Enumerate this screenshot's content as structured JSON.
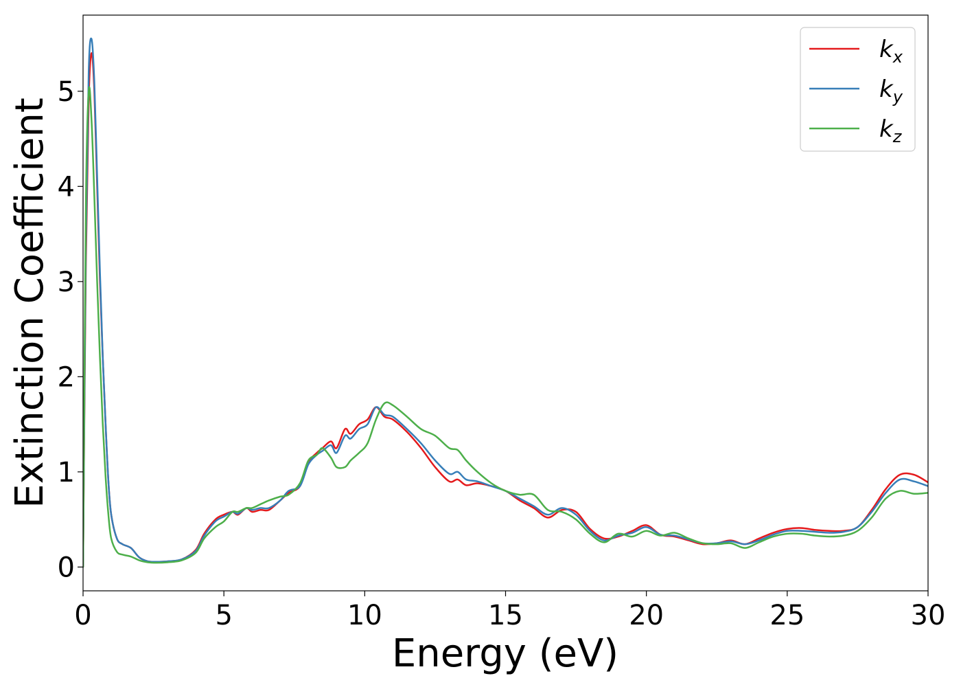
{
  "chart_data": {
    "type": "line",
    "xlabel": "Energy (eV)",
    "ylabel": "Extinction Coefficient",
    "xlim": [
      0,
      30
    ],
    "ylim": [
      -0.25,
      5.8
    ],
    "xticks": [
      0,
      5,
      10,
      15,
      20,
      25,
      30
    ],
    "yticks": [
      0,
      1,
      2,
      3,
      4,
      5
    ],
    "grid": false,
    "legend_position": "top-right",
    "series": [
      {
        "name": "k_x",
        "label_main": "k",
        "label_sub": "x",
        "color": "#e41a1c",
        "points": [
          [
            0,
            0
          ],
          [
            0.1,
            3.2
          ],
          [
            0.2,
            4.9
          ],
          [
            0.3,
            5.4
          ],
          [
            0.4,
            5.0
          ],
          [
            0.5,
            4.0
          ],
          [
            0.6,
            3.0
          ],
          [
            0.7,
            2.2
          ],
          [
            0.8,
            1.5
          ],
          [
            0.9,
            0.9
          ],
          [
            1.0,
            0.55
          ],
          [
            1.2,
            0.3
          ],
          [
            1.4,
            0.24
          ],
          [
            1.7,
            0.2
          ],
          [
            2.0,
            0.1
          ],
          [
            2.3,
            0.06
          ],
          [
            2.6,
            0.055
          ],
          [
            3.0,
            0.06
          ],
          [
            3.5,
            0.08
          ],
          [
            4.0,
            0.18
          ],
          [
            4.3,
            0.35
          ],
          [
            4.7,
            0.5
          ],
          [
            5.0,
            0.55
          ],
          [
            5.3,
            0.58
          ],
          [
            5.5,
            0.55
          ],
          [
            5.8,
            0.62
          ],
          [
            6.0,
            0.58
          ],
          [
            6.3,
            0.6
          ],
          [
            6.6,
            0.6
          ],
          [
            7.0,
            0.7
          ],
          [
            7.3,
            0.78
          ],
          [
            7.7,
            0.85
          ],
          [
            8.0,
            1.1
          ],
          [
            8.3,
            1.2
          ],
          [
            8.5,
            1.25
          ],
          [
            8.8,
            1.32
          ],
          [
            9.0,
            1.25
          ],
          [
            9.3,
            1.45
          ],
          [
            9.5,
            1.4
          ],
          [
            9.8,
            1.5
          ],
          [
            10.1,
            1.55
          ],
          [
            10.4,
            1.68
          ],
          [
            10.7,
            1.58
          ],
          [
            11.0,
            1.55
          ],
          [
            11.5,
            1.42
          ],
          [
            12.0,
            1.25
          ],
          [
            12.5,
            1.05
          ],
          [
            13.0,
            0.9
          ],
          [
            13.3,
            0.92
          ],
          [
            13.6,
            0.86
          ],
          [
            14.0,
            0.88
          ],
          [
            14.5,
            0.85
          ],
          [
            15.0,
            0.8
          ],
          [
            15.5,
            0.7
          ],
          [
            16.0,
            0.62
          ],
          [
            16.5,
            0.52
          ],
          [
            17.0,
            0.6
          ],
          [
            17.5,
            0.58
          ],
          [
            18.0,
            0.4
          ],
          [
            18.5,
            0.3
          ],
          [
            19.0,
            0.32
          ],
          [
            19.5,
            0.38
          ],
          [
            20.0,
            0.44
          ],
          [
            20.5,
            0.34
          ],
          [
            21.0,
            0.32
          ],
          [
            21.5,
            0.28
          ],
          [
            22.0,
            0.24
          ],
          [
            22.5,
            0.25
          ],
          [
            23.0,
            0.28
          ],
          [
            23.5,
            0.24
          ],
          [
            24.0,
            0.3
          ],
          [
            24.5,
            0.36
          ],
          [
            25.0,
            0.4
          ],
          [
            25.5,
            0.41
          ],
          [
            26.0,
            0.39
          ],
          [
            26.5,
            0.38
          ],
          [
            27.0,
            0.38
          ],
          [
            27.5,
            0.42
          ],
          [
            28.0,
            0.6
          ],
          [
            28.5,
            0.82
          ],
          [
            29.0,
            0.97
          ],
          [
            29.5,
            0.97
          ],
          [
            30.0,
            0.89
          ]
        ]
      },
      {
        "name": "k_y",
        "label_main": "k",
        "label_sub": "y",
        "color": "#377eb8",
        "points": [
          [
            0,
            0
          ],
          [
            0.1,
            3.4
          ],
          [
            0.2,
            5.2
          ],
          [
            0.3,
            5.55
          ],
          [
            0.4,
            5.1
          ],
          [
            0.5,
            4.1
          ],
          [
            0.6,
            3.1
          ],
          [
            0.7,
            2.2
          ],
          [
            0.8,
            1.5
          ],
          [
            0.9,
            0.9
          ],
          [
            1.0,
            0.55
          ],
          [
            1.2,
            0.3
          ],
          [
            1.4,
            0.24
          ],
          [
            1.7,
            0.2
          ],
          [
            2.0,
            0.1
          ],
          [
            2.3,
            0.06
          ],
          [
            2.6,
            0.055
          ],
          [
            3.0,
            0.06
          ],
          [
            3.5,
            0.08
          ],
          [
            4.0,
            0.17
          ],
          [
            4.3,
            0.33
          ],
          [
            4.7,
            0.48
          ],
          [
            5.0,
            0.53
          ],
          [
            5.3,
            0.58
          ],
          [
            5.5,
            0.56
          ],
          [
            5.8,
            0.62
          ],
          [
            6.0,
            0.6
          ],
          [
            6.3,
            0.62
          ],
          [
            6.6,
            0.62
          ],
          [
            7.0,
            0.7
          ],
          [
            7.3,
            0.8
          ],
          [
            7.7,
            0.85
          ],
          [
            8.0,
            1.08
          ],
          [
            8.3,
            1.18
          ],
          [
            8.5,
            1.22
          ],
          [
            8.8,
            1.28
          ],
          [
            9.0,
            1.2
          ],
          [
            9.3,
            1.38
          ],
          [
            9.5,
            1.35
          ],
          [
            9.8,
            1.45
          ],
          [
            10.1,
            1.5
          ],
          [
            10.4,
            1.68
          ],
          [
            10.7,
            1.6
          ],
          [
            11.0,
            1.58
          ],
          [
            11.5,
            1.45
          ],
          [
            12.0,
            1.3
          ],
          [
            12.5,
            1.12
          ],
          [
            13.0,
            0.98
          ],
          [
            13.3,
            1.0
          ],
          [
            13.6,
            0.92
          ],
          [
            14.0,
            0.9
          ],
          [
            14.5,
            0.85
          ],
          [
            15.0,
            0.8
          ],
          [
            15.5,
            0.72
          ],
          [
            16.0,
            0.64
          ],
          [
            16.5,
            0.55
          ],
          [
            17.0,
            0.62
          ],
          [
            17.5,
            0.55
          ],
          [
            18.0,
            0.38
          ],
          [
            18.5,
            0.28
          ],
          [
            19.0,
            0.33
          ],
          [
            19.5,
            0.36
          ],
          [
            20.0,
            0.42
          ],
          [
            20.5,
            0.34
          ],
          [
            21.0,
            0.33
          ],
          [
            21.5,
            0.29
          ],
          [
            22.0,
            0.25
          ],
          [
            22.5,
            0.25
          ],
          [
            23.0,
            0.27
          ],
          [
            23.5,
            0.24
          ],
          [
            24.0,
            0.28
          ],
          [
            24.5,
            0.34
          ],
          [
            25.0,
            0.38
          ],
          [
            25.5,
            0.38
          ],
          [
            26.0,
            0.37
          ],
          [
            26.5,
            0.36
          ],
          [
            27.0,
            0.37
          ],
          [
            27.5,
            0.42
          ],
          [
            28.0,
            0.58
          ],
          [
            28.5,
            0.78
          ],
          [
            29.0,
            0.92
          ],
          [
            29.5,
            0.9
          ],
          [
            30.0,
            0.85
          ]
        ]
      },
      {
        "name": "k_z",
        "label_main": "k",
        "label_sub": "z",
        "color": "#4daf4a",
        "points": [
          [
            0,
            0
          ],
          [
            0.1,
            3.8
          ],
          [
            0.2,
            5.0
          ],
          [
            0.3,
            4.7
          ],
          [
            0.4,
            3.9
          ],
          [
            0.5,
            3.0
          ],
          [
            0.6,
            2.2
          ],
          [
            0.7,
            1.5
          ],
          [
            0.8,
            0.95
          ],
          [
            0.9,
            0.55
          ],
          [
            1.0,
            0.3
          ],
          [
            1.2,
            0.16
          ],
          [
            1.4,
            0.13
          ],
          [
            1.7,
            0.11
          ],
          [
            2.0,
            0.07
          ],
          [
            2.3,
            0.05
          ],
          [
            2.6,
            0.045
          ],
          [
            3.0,
            0.05
          ],
          [
            3.5,
            0.07
          ],
          [
            4.0,
            0.15
          ],
          [
            4.3,
            0.3
          ],
          [
            4.7,
            0.42
          ],
          [
            5.0,
            0.48
          ],
          [
            5.3,
            0.58
          ],
          [
            5.5,
            0.58
          ],
          [
            5.8,
            0.62
          ],
          [
            6.0,
            0.62
          ],
          [
            6.3,
            0.66
          ],
          [
            6.6,
            0.7
          ],
          [
            7.0,
            0.74
          ],
          [
            7.3,
            0.76
          ],
          [
            7.7,
            0.88
          ],
          [
            8.0,
            1.12
          ],
          [
            8.3,
            1.18
          ],
          [
            8.5,
            1.25
          ],
          [
            8.8,
            1.15
          ],
          [
            9.0,
            1.05
          ],
          [
            9.3,
            1.05
          ],
          [
            9.5,
            1.12
          ],
          [
            9.8,
            1.2
          ],
          [
            10.1,
            1.3
          ],
          [
            10.4,
            1.55
          ],
          [
            10.7,
            1.72
          ],
          [
            11.0,
            1.7
          ],
          [
            11.5,
            1.58
          ],
          [
            12.0,
            1.45
          ],
          [
            12.5,
            1.38
          ],
          [
            13.0,
            1.25
          ],
          [
            13.3,
            1.23
          ],
          [
            13.6,
            1.12
          ],
          [
            14.0,
            1.0
          ],
          [
            14.5,
            0.88
          ],
          [
            15.0,
            0.8
          ],
          [
            15.5,
            0.76
          ],
          [
            16.0,
            0.76
          ],
          [
            16.5,
            0.6
          ],
          [
            17.0,
            0.58
          ],
          [
            17.5,
            0.5
          ],
          [
            18.0,
            0.35
          ],
          [
            18.5,
            0.26
          ],
          [
            19.0,
            0.35
          ],
          [
            19.5,
            0.32
          ],
          [
            20.0,
            0.38
          ],
          [
            20.5,
            0.33
          ],
          [
            21.0,
            0.36
          ],
          [
            21.5,
            0.3
          ],
          [
            22.0,
            0.25
          ],
          [
            22.5,
            0.24
          ],
          [
            23.0,
            0.25
          ],
          [
            23.5,
            0.2
          ],
          [
            24.0,
            0.26
          ],
          [
            24.5,
            0.32
          ],
          [
            25.0,
            0.35
          ],
          [
            25.5,
            0.35
          ],
          [
            26.0,
            0.33
          ],
          [
            26.5,
            0.32
          ],
          [
            27.0,
            0.33
          ],
          [
            27.5,
            0.38
          ],
          [
            28.0,
            0.52
          ],
          [
            28.5,
            0.72
          ],
          [
            29.0,
            0.8
          ],
          [
            29.5,
            0.77
          ],
          [
            30.0,
            0.78
          ]
        ]
      }
    ]
  }
}
